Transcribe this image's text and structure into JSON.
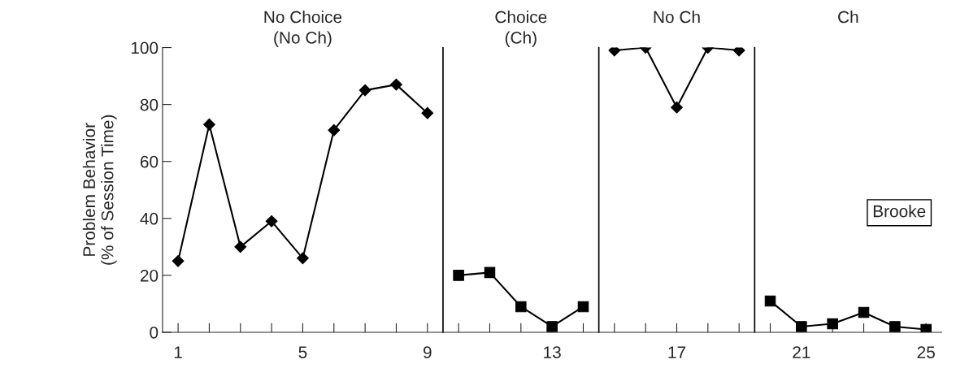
{
  "chart_data": {
    "type": "line",
    "ylabel": "Problem Behavior\n(% of Session Time)",
    "xlim": [
      0.5,
      25.5
    ],
    "ylim": [
      0,
      100
    ],
    "xticks": [
      1,
      {
        "value": 2,
        "label": null
      },
      {
        "value": 3,
        "label": null
      },
      {
        "value": 4,
        "label": null
      },
      5,
      {
        "value": 6,
        "label": null
      },
      {
        "value": 7,
        "label": null
      },
      {
        "value": 8,
        "label": null
      },
      9,
      {
        "value": 10,
        "label": null
      },
      {
        "value": 11,
        "label": null
      },
      {
        "value": 12,
        "label": null
      },
      13,
      {
        "value": 14,
        "label": null
      },
      {
        "value": 15,
        "label": null
      },
      {
        "value": 16,
        "label": null
      },
      17,
      {
        "value": 18,
        "label": null
      },
      {
        "value": 19,
        "label": null
      },
      {
        "value": 20,
        "label": null
      },
      21,
      {
        "value": 22,
        "label": null
      },
      {
        "value": 23,
        "label": null
      },
      {
        "value": 24,
        "label": null
      },
      25
    ],
    "yticks": [
      0,
      20,
      40,
      60,
      80,
      100
    ],
    "grid": false,
    "series": [
      {
        "color": "#000000",
        "marker": "diamond",
        "x": [
          1,
          2,
          3,
          4,
          5,
          6,
          7,
          8,
          9
        ],
        "values": [
          25,
          73,
          30,
          39,
          26,
          71,
          85,
          87,
          77
        ]
      },
      {
        "color": "#000000",
        "marker": "square",
        "x": [
          10,
          11,
          12,
          13,
          14
        ],
        "values": [
          20,
          21,
          9,
          2,
          9
        ]
      },
      {
        "color": "#000000",
        "marker": "diamond",
        "x": [
          15,
          16,
          17,
          18,
          19
        ],
        "values": [
          99,
          100,
          79,
          100,
          99
        ]
      },
      {
        "color": "#000000",
        "marker": "square",
        "x": [
          20,
          21,
          22,
          23,
          24,
          25
        ],
        "values": [
          11,
          2,
          3,
          7,
          2,
          1
        ]
      }
    ],
    "ref_lines": [
      {
        "axis": "x",
        "value": 9.5,
        "color": "#000000"
      },
      {
        "axis": "x",
        "value": 14.5,
        "color": "#000000"
      },
      {
        "axis": "x",
        "value": 19.5,
        "color": "#000000"
      }
    ],
    "annotations": [
      "No Choice\n(No Ch)",
      "Choice\n(Ch)",
      "No Ch",
      "Ch",
      "Brooke"
    ]
  }
}
